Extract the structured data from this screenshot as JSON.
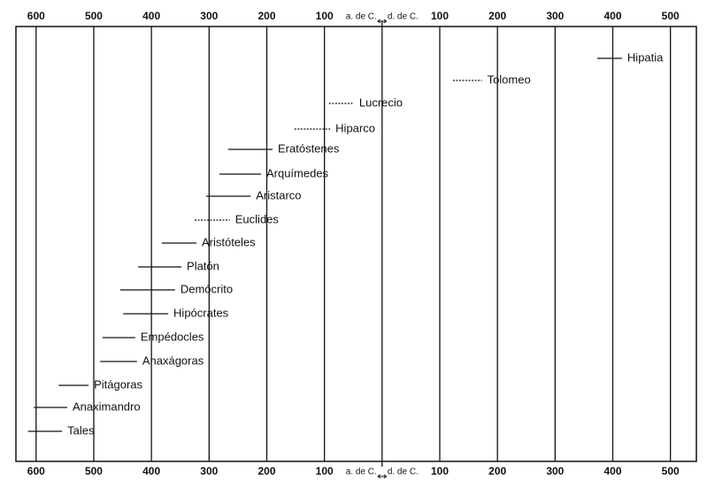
{
  "chart_data": {
    "type": "timeline",
    "xlim": [
      -635,
      545
    ],
    "xticks": [
      {
        "value": -600,
        "label": "600"
      },
      {
        "value": -500,
        "label": "500"
      },
      {
        "value": -400,
        "label": "400"
      },
      {
        "value": -300,
        "label": "300"
      },
      {
        "value": -200,
        "label": "200"
      },
      {
        "value": -100,
        "label": "100"
      },
      100,
      200,
      300,
      400,
      500
    ],
    "era_boundary": 0,
    "era_labels": [
      "a. de C.",
      "d. de C."
    ],
    "grid": true,
    "color": "#111111",
    "items": [
      {
        "name": "Hipatia",
        "start": 373,
        "end": 416,
        "line_style": "solid"
      },
      {
        "name": "Tolomeo",
        "start": 123,
        "end": 173,
        "line_style": "dashed"
      },
      {
        "name": "Lucrecio",
        "start": -92,
        "end": -49,
        "line_style": "dashed"
      },
      {
        "name": "Hiparco",
        "start": -152,
        "end": -90,
        "line_style": "dashed"
      },
      {
        "name": "Eratóstenes",
        "start": -267,
        "end": -190,
        "line_style": "solid"
      },
      {
        "name": "Arquímedes",
        "start": -282,
        "end": -210,
        "line_style": "solid"
      },
      {
        "name": "Aristarco",
        "start": -305,
        "end": -228,
        "line_style": "solid"
      },
      {
        "name": "Euclides",
        "start": -325,
        "end": -264,
        "line_style": "dashed"
      },
      {
        "name": "Aristóteles",
        "start": -382,
        "end": -322,
        "line_style": "solid"
      },
      {
        "name": "Platón",
        "start": -423,
        "end": -348,
        "line_style": "solid"
      },
      {
        "name": "Demócrito",
        "start": -454,
        "end": -359,
        "line_style": "solid"
      },
      {
        "name": "Hipócrates",
        "start": -449,
        "end": -371,
        "line_style": "solid"
      },
      {
        "name": "Empédocles",
        "start": -485,
        "end": -428,
        "line_style": "solid"
      },
      {
        "name": "Anaxágoras",
        "start": -489,
        "end": -425,
        "line_style": "solid"
      },
      {
        "name": "Pitágoras",
        "start": -561,
        "end": -509,
        "line_style": "solid"
      },
      {
        "name": "Anaximandro",
        "start": -604,
        "end": -546,
        "line_style": "solid"
      },
      {
        "name": "Tales",
        "start": -614,
        "end": -555,
        "line_style": "solid"
      }
    ]
  }
}
